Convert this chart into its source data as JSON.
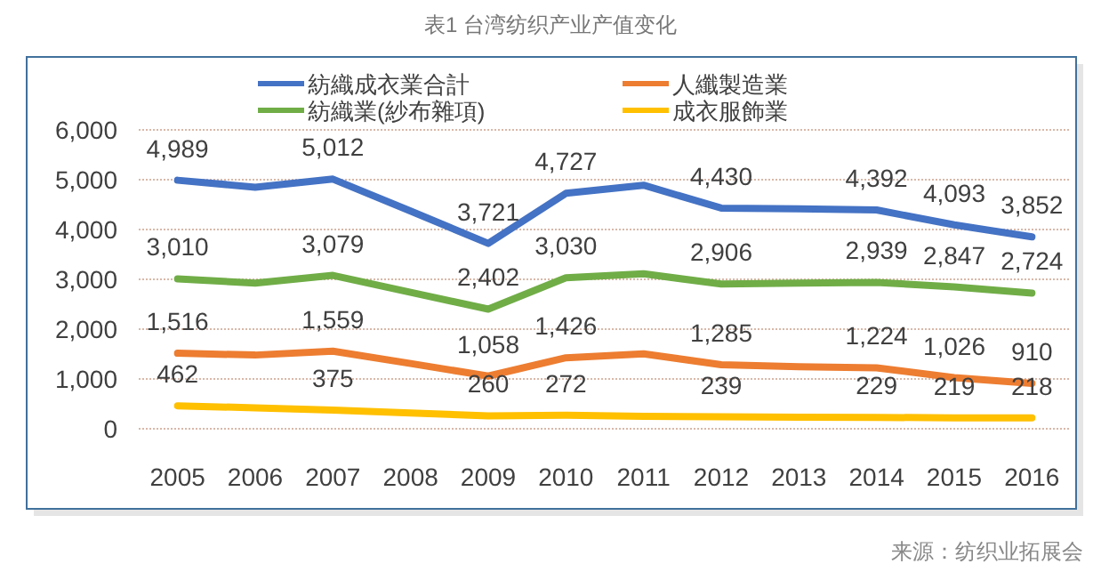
{
  "chart_data": {
    "type": "line",
    "title": "表1 台湾纺织产业产值变化",
    "categories": [
      "2005",
      "2006",
      "2007",
      "2008",
      "2009",
      "2010",
      "2011",
      "2012",
      "2013",
      "2014",
      "2015",
      "2016"
    ],
    "series": [
      {
        "name": "紡織成衣業合計",
        "color": "#4472c4",
        "values": [
          4989,
          4850,
          5012,
          4370,
          3721,
          4727,
          4890,
          4430,
          4415,
          4392,
          4093,
          3852
        ],
        "value_labels": [
          "4,989",
          null,
          "5,012",
          null,
          "3,721",
          "4,727",
          null,
          "4,430",
          null,
          "4,392",
          "4,093",
          "3,852"
        ]
      },
      {
        "name": "人纖製造業",
        "color": "#ed7d31",
        "values": [
          1516,
          1480,
          1559,
          1310,
          1058,
          1426,
          1505,
          1285,
          1245,
          1224,
          1026,
          910
        ],
        "value_labels": [
          "1,516",
          null,
          "1,559",
          null,
          "1,058",
          "1,426",
          null,
          "1,285",
          null,
          "1,224",
          "1,026",
          "910"
        ]
      },
      {
        "name": "紡織業(紗布雜項)",
        "color": "#70ad47",
        "values": [
          3010,
          2925,
          3079,
          2740,
          2402,
          3030,
          3110,
          2906,
          2925,
          2939,
          2847,
          2724
        ],
        "value_labels": [
          "3,010",
          null,
          "3,079",
          null,
          "2,402",
          "3,030",
          null,
          "2,906",
          null,
          "2,939",
          "2,847",
          "2,724"
        ]
      },
      {
        "name": "成衣服飾業",
        "color": "#ffc000",
        "values": [
          462,
          420,
          375,
          315,
          260,
          272,
          250,
          239,
          234,
          229,
          219,
          218
        ],
        "value_labels": [
          "462",
          null,
          "375",
          null,
          "260",
          "272",
          null,
          "239",
          null,
          "229",
          "219",
          "218"
        ]
      }
    ],
    "ylim": [
      0,
      6000
    ],
    "yticks": [
      {
        "value": 0,
        "label": "0"
      },
      {
        "value": 1000,
        "label": "1,000"
      },
      {
        "value": 2000,
        "label": "2,000"
      },
      {
        "value": 3000,
        "label": "3,000"
      },
      {
        "value": 4000,
        "label": "4,000"
      },
      {
        "value": 5000,
        "label": "5,000"
      },
      {
        "value": 6000,
        "label": "6,000"
      }
    ],
    "grid": "y",
    "legend": "top",
    "marker": "none",
    "line_style": "solid",
    "annotations": [
      "来源：纺织业拓展会"
    ]
  }
}
